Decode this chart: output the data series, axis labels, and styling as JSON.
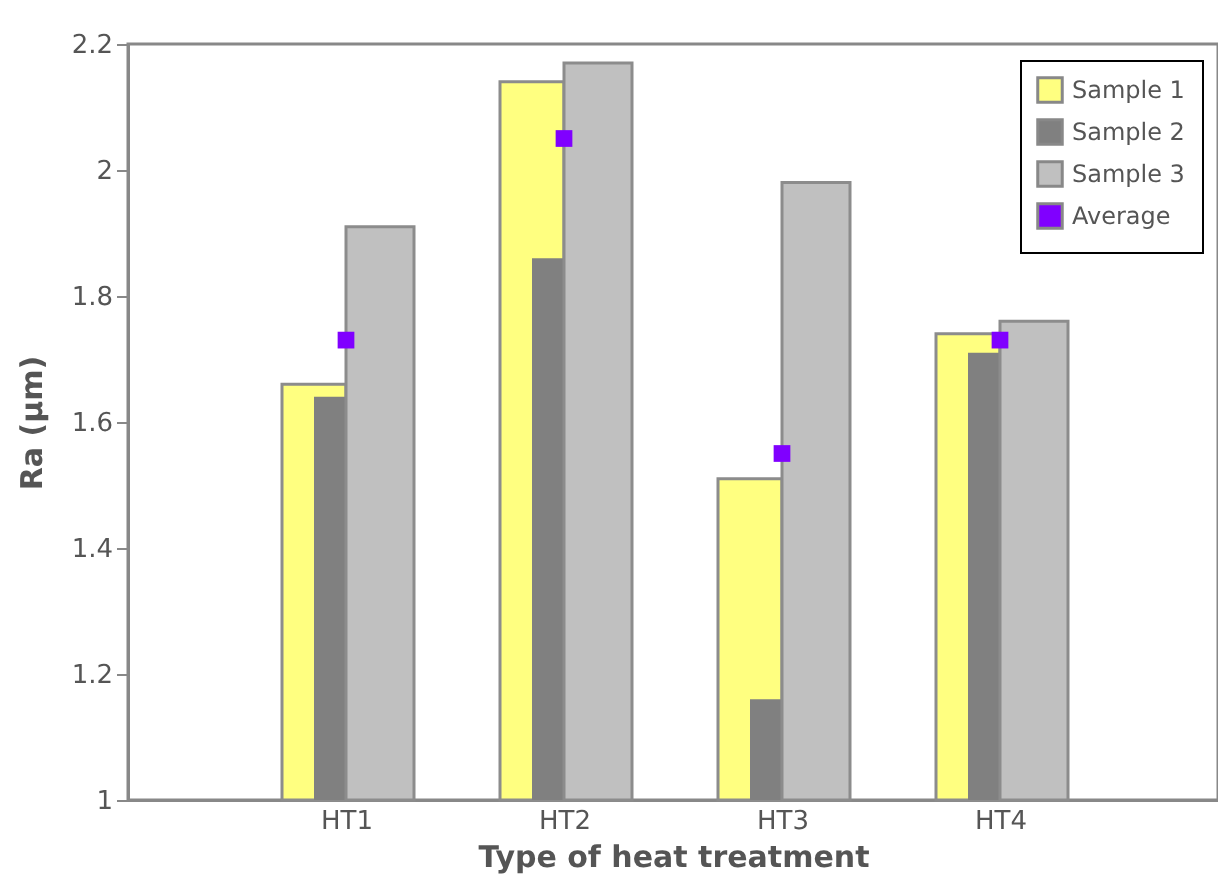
{
  "chart_data": {
    "type": "bar",
    "xlabel": "Type of heat treatment",
    "ylabel": "Ra (µm)",
    "categories": [
      "HT1",
      "HT2",
      "HT3",
      "HT4"
    ],
    "series": [
      {
        "name": "Sample 1",
        "color": "#ffff80",
        "values": [
          1.66,
          2.14,
          1.51,
          1.74
        ]
      },
      {
        "name": "Sample 2",
        "color": "#808080",
        "values": [
          1.64,
          1.86,
          1.16,
          1.71
        ]
      },
      {
        "name": "Sample 3",
        "color": "#c0c0c0",
        "values": [
          1.91,
          2.17,
          1.98,
          1.76
        ]
      },
      {
        "name": "Average",
        "type": "scatter",
        "marker": "square",
        "color": "#8000ff",
        "values": [
          1.73,
          2.05,
          1.55,
          1.73
        ]
      }
    ],
    "ylim": [
      1,
      2.2
    ],
    "yticks": [
      1,
      1.2,
      1.4,
      1.6,
      1.8,
      2,
      2.2
    ],
    "grid": false,
    "legend": "top right"
  }
}
